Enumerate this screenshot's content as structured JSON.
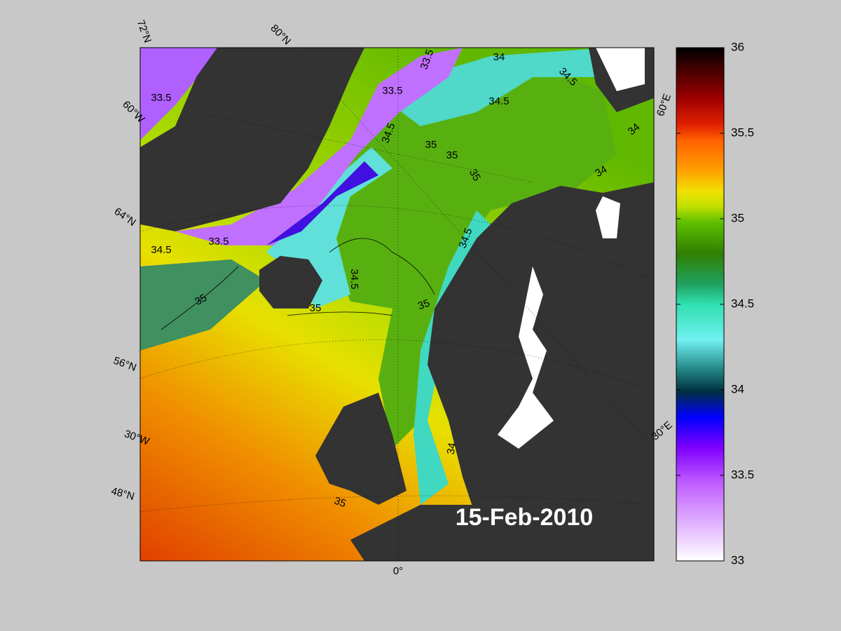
{
  "map": {
    "date": "15-Feb-2010",
    "graticule_labels": [
      "72°N",
      "80°N",
      "60°W",
      "64°N",
      "56°N",
      "30°W",
      "48°N",
      "0°",
      "30°E",
      "60°E"
    ],
    "contour_labels": [
      33.5,
      33.5,
      33.5,
      34,
      34.5,
      34.5,
      34.5,
      35,
      35,
      35,
      34,
      34,
      33.5,
      34.5,
      34.5,
      35,
      35,
      35,
      34.5,
      35,
      34
    ],
    "colorbar": {
      "range": [
        33,
        36
      ],
      "ticks": [
        33,
        33.5,
        34,
        34.5,
        35,
        35.5,
        36
      ]
    }
  }
}
